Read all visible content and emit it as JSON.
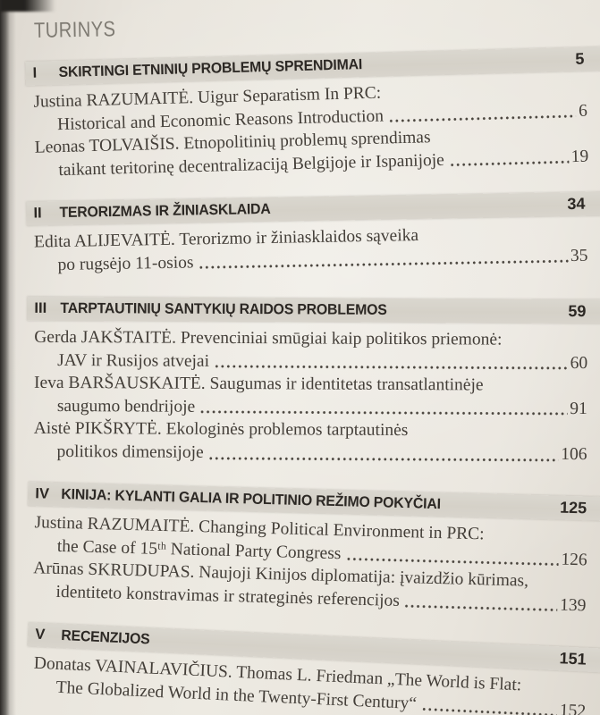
{
  "colors": {
    "paper": "#eae6de",
    "highlight_bar": "#d6d2c9",
    "heading_text": "#2c2824",
    "body_text": "#433e38",
    "title_text": "#7f7b73",
    "photo_edge": "#2c2a27"
  },
  "toc": {
    "title": "TURINYS",
    "sections": [
      {
        "numeral": "I",
        "heading": "SKIRTINGI ETNINIŲ PROBLEMŲ SPRENDIMAI",
        "page": "5",
        "entries": [
          {
            "line1": "Justina RAZUMAITĖ. Uigur Separatism In PRC:",
            "line2": "Historical and Economic Reasons Introduction",
            "page": "6"
          },
          {
            "line1": "Leonas TOLVAIŠIS. Etnopolitinių problemų sprendimas",
            "line2": "taikant teritorinę decentralizaciją Belgijoje ir Ispanijoje",
            "page": "19"
          }
        ]
      },
      {
        "numeral": "II",
        "heading": "TERORIZMAS IR ŽINIASKLAIDA",
        "page": "34",
        "entries": [
          {
            "line1": "Edita ALIJEVAITĖ. Terorizmo ir žiniasklaidos sąveika",
            "line2": "po rugsėjo 11-osios",
            "page": "35"
          }
        ]
      },
      {
        "numeral": "III",
        "heading": "TARPTAUTINIŲ SANTYKIŲ RAIDOS PROBLEMOS",
        "page": "59",
        "entries": [
          {
            "line1": "Gerda JAKŠTAITĖ. Prevenciniai smūgiai kaip politikos priemonė:",
            "line2": "JAV ir Rusijos atvejai",
            "page": "60"
          },
          {
            "line1": "Ieva BARŠAUSKAITĖ. Saugumas ir identitetas transatlantinėje",
            "line2": "saugumo bendrijoje",
            "page": "91"
          },
          {
            "line1": "Aistė PIKŠRYTĖ. Ekologinės problemos tarptautinės",
            "line2": "politikos dimensijoje",
            "page": "106"
          }
        ]
      },
      {
        "numeral": "IV",
        "heading": "KINIJA: KYLANTI GALIA IR POLITINIO REŽIMO POKYČIAI",
        "page": "125",
        "entries": [
          {
            "line1": "Justina RAZUMAITĖ. Changing Political Environment in PRC:",
            "line2": "the Case of 15ᵗʰ National Party Congress",
            "page": "126"
          },
          {
            "line1": "Arūnas SKRUDUPAS. Naujoji Kinijos diplomatija: įvaizdžio kūrimas,",
            "line2": "identiteto konstravimas ir strateginės referencijos",
            "page": "139"
          }
        ]
      },
      {
        "numeral": "V",
        "heading": "RECENZIJOS",
        "page": "151",
        "entries": [
          {
            "line1": "Donatas VAINALAVIČIUS. Thomas L. Friedman „The World is Flat:",
            "line2": "The Globalized World in the Twenty-First Century“",
            "page": "152"
          }
        ]
      }
    ]
  }
}
